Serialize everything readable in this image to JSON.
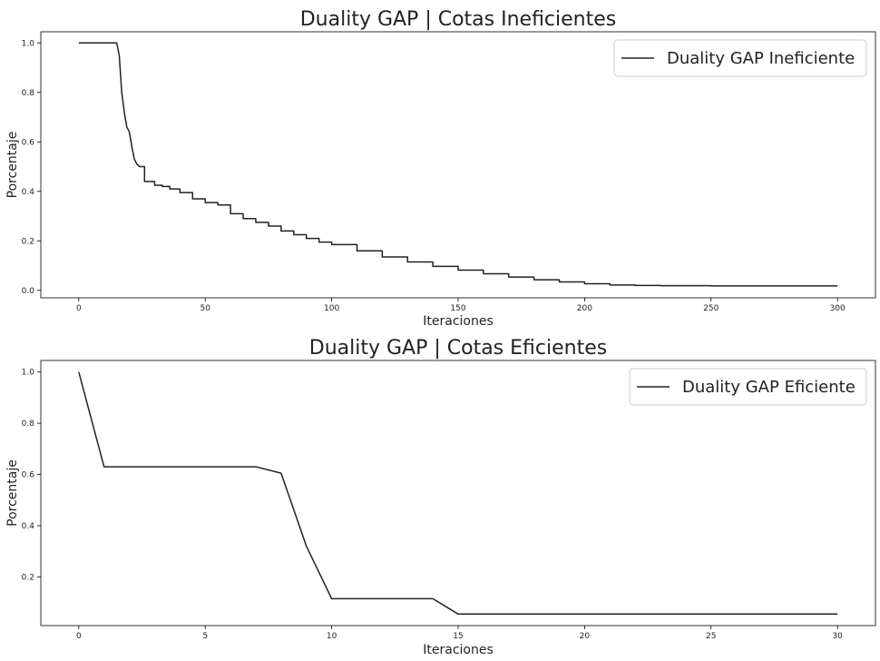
{
  "chart_data": [
    {
      "type": "line",
      "title": "Duality GAP | Cotas Ineficientes",
      "xlabel": "Iteraciones",
      "ylabel": "Porcentaje",
      "xlim": [
        -15,
        315
      ],
      "ylim": [
        -0.03,
        1.045
      ],
      "xticks": [
        0,
        50,
        100,
        150,
        200,
        250,
        300
      ],
      "yticks": [
        0.0,
        0.2,
        0.4,
        0.6,
        0.8,
        1.0
      ],
      "xtick_labels": [
        "0",
        "50",
        "100",
        "150",
        "200",
        "250",
        "300"
      ],
      "ytick_labels": [
        "0.0",
        "0.2",
        "0.4",
        "0.6",
        "0.8",
        "1.0"
      ],
      "grid": false,
      "legend_position": "top-right",
      "series": [
        {
          "name": "Duality GAP Ineficiente",
          "color": "#222222",
          "x": [
            0,
            15,
            16,
            17,
            18,
            19,
            20,
            21,
            22,
            23,
            24,
            26,
            28,
            30,
            33,
            36,
            40,
            45,
            50,
            55,
            60,
            65,
            70,
            75,
            80,
            85,
            90,
            95,
            100,
            110,
            120,
            130,
            140,
            150,
            160,
            170,
            180,
            190,
            200,
            210,
            220,
            230,
            250,
            300
          ],
          "y": [
            1.0,
            1.0,
            0.95,
            0.8,
            0.72,
            0.66,
            0.64,
            0.58,
            0.53,
            0.51,
            0.5,
            0.44,
            0.44,
            0.425,
            0.42,
            0.41,
            0.395,
            0.37,
            0.355,
            0.345,
            0.31,
            0.29,
            0.275,
            0.26,
            0.24,
            0.225,
            0.21,
            0.195,
            0.185,
            0.16,
            0.135,
            0.115,
            0.097,
            0.082,
            0.067,
            0.054,
            0.043,
            0.034,
            0.027,
            0.022,
            0.02,
            0.019,
            0.018,
            0.018
          ]
        }
      ]
    },
    {
      "type": "line",
      "title": "Duality GAP | Cotas Eficientes",
      "xlabel": "Iteraciones",
      "ylabel": "Porcentaje",
      "xlim": [
        -1.5,
        31.5
      ],
      "ylim": [
        0.01,
        1.045
      ],
      "xticks": [
        0,
        5,
        10,
        15,
        20,
        25,
        30
      ],
      "yticks": [
        0.2,
        0.4,
        0.6,
        0.8,
        1.0
      ],
      "xtick_labels": [
        "0",
        "5",
        "10",
        "15",
        "20",
        "25",
        "30"
      ],
      "ytick_labels": [
        "0.2",
        "0.4",
        "0.6",
        "0.8",
        "1.0"
      ],
      "grid": false,
      "legend_position": "top-right",
      "series": [
        {
          "name": "Duality GAP Eficiente",
          "color": "#222222",
          "x": [
            0,
            1,
            2,
            3,
            4,
            5,
            6,
            7,
            8,
            9,
            10,
            11,
            12,
            13,
            14,
            15,
            16,
            17,
            18,
            19,
            20,
            21,
            22,
            23,
            24,
            25,
            26,
            27,
            28,
            29,
            30
          ],
          "y": [
            1.0,
            0.63,
            0.63,
            0.63,
            0.63,
            0.63,
            0.63,
            0.63,
            0.605,
            0.32,
            0.115,
            0.115,
            0.115,
            0.115,
            0.115,
            0.055,
            0.055,
            0.055,
            0.055,
            0.055,
            0.055,
            0.055,
            0.055,
            0.055,
            0.055,
            0.055,
            0.055,
            0.055,
            0.055,
            0.055,
            0.055
          ]
        }
      ]
    }
  ]
}
